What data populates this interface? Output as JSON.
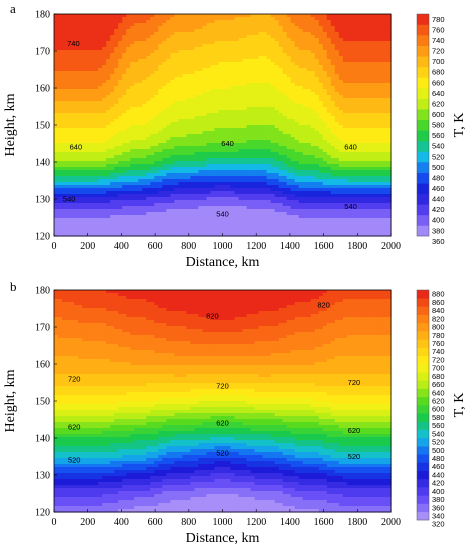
{
  "chart_data": [
    {
      "type": "heatmap",
      "panel_label": "a",
      "title": "",
      "xlabel": "Distance, km",
      "ylabel": "Height, km",
      "xlim": [
        0,
        2000
      ],
      "ylim": [
        120,
        180
      ],
      "x_ticks": [
        "0",
        "200",
        "400",
        "600",
        "800",
        "1000",
        "1200",
        "1400",
        "1600",
        "1800",
        "2000"
      ],
      "y_ticks": [
        "120",
        "130",
        "140",
        "150",
        "160",
        "170",
        "180"
      ],
      "colorbar": {
        "title": "T, K",
        "levels": [
          360,
          380,
          400,
          420,
          440,
          460,
          480,
          500,
          520,
          540,
          560,
          580,
          600,
          620,
          640,
          660,
          680,
          700,
          720,
          740,
          760,
          780
        ],
        "labels": [
          "780",
          "760",
          "740",
          "720",
          "700",
          "680",
          "660",
          "640",
          "620",
          "600",
          "580",
          "560",
          "540",
          "520",
          "500",
          "480",
          "460",
          "440",
          "420",
          "400",
          "380",
          "360"
        ]
      },
      "profile_x": [
        0,
        250,
        500,
        750,
        1000,
        1250,
        1500,
        1750,
        2000
      ],
      "profile_heights": [
        120,
        125,
        130,
        135,
        140,
        145,
        150,
        155,
        160,
        165,
        170,
        175,
        180
      ],
      "temperature_profiles": [
        [
          350,
          380,
          430,
          520,
          600,
          640,
          665,
          690,
          720,
          740,
          760,
          780,
          800
        ],
        [
          350,
          380,
          430,
          520,
          600,
          640,
          665,
          690,
          720,
          740,
          760,
          780,
          800
        ],
        [
          340,
          370,
          420,
          500,
          570,
          615,
          640,
          660,
          675,
          690,
          710,
          730,
          750
        ],
        [
          335,
          360,
          405,
          470,
          540,
          590,
          615,
          635,
          650,
          665,
          680,
          700,
          720
        ],
        [
          330,
          350,
          395,
          460,
          530,
          580,
          605,
          625,
          640,
          655,
          670,
          690,
          705
        ],
        [
          335,
          360,
          405,
          470,
          530,
          575,
          600,
          620,
          635,
          650,
          665,
          680,
          700
        ],
        [
          345,
          380,
          430,
          510,
          565,
          600,
          620,
          640,
          660,
          680,
          700,
          720,
          740
        ],
        [
          350,
          380,
          430,
          520,
          600,
          640,
          665,
          690,
          715,
          735,
          750,
          770,
          790
        ],
        [
          350,
          380,
          430,
          520,
          600,
          640,
          665,
          690,
          715,
          735,
          750,
          770,
          790
        ]
      ],
      "annotations": [
        {
          "text": "740",
          "x": 115,
          "y": 172
        },
        {
          "text": "640",
          "x": 130,
          "y": 144
        },
        {
          "text": "640",
          "x": 1030,
          "y": 145
        },
        {
          "text": "640",
          "x": 1760,
          "y": 144
        },
        {
          "text": "540",
          "x": 90,
          "y": 130
        },
        {
          "text": "540",
          "x": 1000,
          "y": 126
        },
        {
          "text": "540",
          "x": 1760,
          "y": 128
        }
      ]
    },
    {
      "type": "heatmap",
      "panel_label": "b",
      "title": "",
      "xlabel": "Distance, km",
      "ylabel": "Height, km",
      "xlim": [
        0,
        2000
      ],
      "ylim": [
        120,
        180
      ],
      "x_ticks": [
        "0",
        "200",
        "400",
        "600",
        "800",
        "1000",
        "1200",
        "1400",
        "1600",
        "1800",
        "2000"
      ],
      "y_ticks": [
        "120",
        "130",
        "140",
        "150",
        "160",
        "170",
        "180"
      ],
      "colorbar": {
        "title": "T, K",
        "levels": [
          320,
          340,
          360,
          380,
          400,
          420,
          440,
          460,
          480,
          500,
          520,
          540,
          560,
          580,
          600,
          620,
          640,
          660,
          680,
          700,
          720,
          740,
          760,
          780,
          800,
          820,
          840,
          860,
          880
        ],
        "labels": [
          "880",
          "860",
          "840",
          "820",
          "800",
          "780",
          "760",
          "740",
          "720",
          "700",
          "680",
          "660",
          "640",
          "620",
          "600",
          "580",
          "560",
          "540",
          "520",
          "500",
          "480",
          "460",
          "440",
          "420",
          "400",
          "380",
          "360",
          "340",
          "320"
        ]
      },
      "profile_x": [
        0,
        250,
        500,
        750,
        1000,
        1250,
        1500,
        1750,
        2000
      ],
      "profile_heights": [
        120,
        125,
        130,
        135,
        140,
        145,
        150,
        155,
        160,
        165,
        170,
        175,
        180
      ],
      "temperature_profiles": [
        [
          345,
          385,
          450,
          530,
          580,
          650,
          710,
          750,
          770,
          790,
          810,
          830,
          850
        ],
        [
          345,
          385,
          450,
          530,
          580,
          650,
          710,
          750,
          775,
          795,
          815,
          840,
          860
        ],
        [
          330,
          370,
          435,
          515,
          570,
          635,
          700,
          745,
          780,
          805,
          830,
          850,
          870
        ],
        [
          320,
          350,
          410,
          480,
          550,
          620,
          690,
          745,
          785,
          815,
          840,
          865,
          885
        ],
        [
          310,
          340,
          395,
          460,
          540,
          610,
          680,
          740,
          785,
          820,
          850,
          875,
          895
        ],
        [
          320,
          350,
          410,
          480,
          550,
          620,
          690,
          745,
          785,
          815,
          840,
          865,
          890
        ],
        [
          335,
          370,
          430,
          505,
          565,
          630,
          695,
          745,
          780,
          805,
          825,
          850,
          875
        ],
        [
          345,
          385,
          450,
          530,
          580,
          650,
          710,
          750,
          770,
          790,
          810,
          830,
          850
        ],
        [
          345,
          385,
          450,
          530,
          580,
          650,
          710,
          750,
          770,
          790,
          810,
          830,
          850
        ]
      ],
      "annotations": [
        {
          "text": "820",
          "x": 940,
          "y": 173
        },
        {
          "text": "820",
          "x": 1600,
          "y": 176
        },
        {
          "text": "720",
          "x": 120,
          "y": 156
        },
        {
          "text": "720",
          "x": 1000,
          "y": 154
        },
        {
          "text": "720",
          "x": 1780,
          "y": 155
        },
        {
          "text": "620",
          "x": 120,
          "y": 143
        },
        {
          "text": "620",
          "x": 1000,
          "y": 144
        },
        {
          "text": "620",
          "x": 1780,
          "y": 142
        },
        {
          "text": "520",
          "x": 120,
          "y": 134
        },
        {
          "text": "520",
          "x": 1000,
          "y": 136
        },
        {
          "text": "520",
          "x": 1780,
          "y": 135
        }
      ]
    }
  ]
}
